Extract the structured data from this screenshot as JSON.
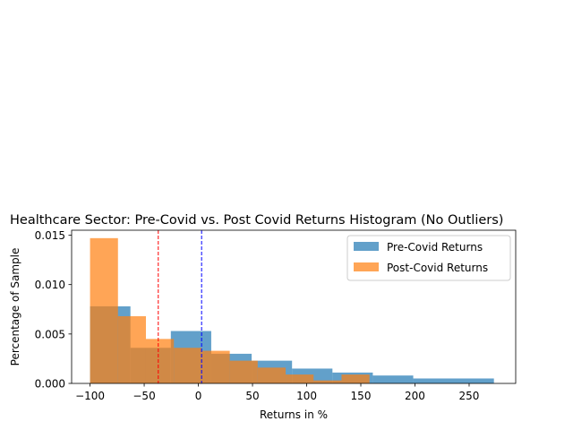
{
  "chart_data": {
    "type": "bar",
    "title": "Healthcare Sector: Pre-Covid vs. Post Covid Returns Histogram (No Outliers)",
    "xlabel": "Returns in %",
    "ylabel": "Percentage of Sample",
    "xlim": [
      -117,
      293
    ],
    "ylim": [
      0,
      0.0155
    ],
    "x_ticks": [
      -100,
      -50,
      0,
      50,
      100,
      150,
      200,
      250
    ],
    "y_ticks": [
      0.0,
      0.005,
      0.01,
      0.015
    ],
    "y_tick_labels": [
      "0.000",
      "0.005",
      "0.010",
      "0.015"
    ],
    "legend_position": "top-right",
    "series": [
      {
        "name": "Pre-Covid Returns",
        "color": "#1f77b4",
        "opacity": 0.7,
        "bins": [
          {
            "x0": -100,
            "x1": -62.7,
            "value": 0.0078
          },
          {
            "x0": -62.7,
            "x1": -25.4,
            "value": 0.0036
          },
          {
            "x0": -25.4,
            "x1": 11.9,
            "value": 0.0053
          },
          {
            "x0": 11.9,
            "x1": 49.2,
            "value": 0.003
          },
          {
            "x0": 49.2,
            "x1": 86.5,
            "value": 0.0023
          },
          {
            "x0": 86.5,
            "x1": 123.8,
            "value": 0.0015
          },
          {
            "x0": 123.8,
            "x1": 161.1,
            "value": 0.0011
          },
          {
            "x0": 161.1,
            "x1": 198.4,
            "value": 0.0008
          },
          {
            "x0": 198.4,
            "x1": 272.9,
            "value": 0.0005
          }
        ]
      },
      {
        "name": "Post-Covid Returns",
        "color": "#ff7f0e",
        "opacity": 0.7,
        "bins": [
          {
            "x0": -100,
            "x1": -74.2,
            "value": 0.0147
          },
          {
            "x0": -74.2,
            "x1": -48.4,
            "value": 0.0068
          },
          {
            "x0": -48.4,
            "x1": -22.6,
            "value": 0.0045
          },
          {
            "x0": -22.6,
            "x1": 3.2,
            "value": 0.0036
          },
          {
            "x0": 3.2,
            "x1": 29.0,
            "value": 0.0033
          },
          {
            "x0": 29.0,
            "x1": 54.8,
            "value": 0.0023
          },
          {
            "x0": 54.8,
            "x1": 80.6,
            "value": 0.0016
          },
          {
            "x0": 80.6,
            "x1": 106.4,
            "value": 0.0009
          },
          {
            "x0": 106.4,
            "x1": 132.2,
            "value": 0.0003
          },
          {
            "x0": 132.2,
            "x1": 158.0,
            "value": 0.0009
          }
        ]
      }
    ],
    "reference_lines": [
      {
        "x": 3,
        "color": "#0000ff",
        "style": "dashed"
      },
      {
        "x": -37,
        "color": "#ff0000",
        "style": "dashed"
      }
    ],
    "grid": false
  }
}
